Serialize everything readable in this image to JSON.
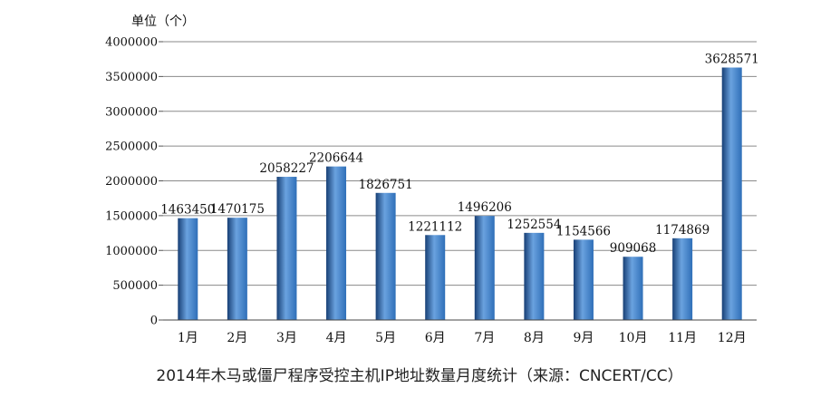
{
  "chart_data": {
    "type": "bar",
    "title": "2014年木马或僵尸程序受控主机IP地址数量月度统计（来源：CNCERT/CC）",
    "ylabel": "单位（个）",
    "xlabel": "",
    "categories": [
      "1月",
      "2月",
      "3月",
      "4月",
      "5月",
      "6月",
      "7月",
      "8月",
      "9月",
      "10月",
      "11月",
      "12月"
    ],
    "values": [
      1463450,
      1470175,
      2058227,
      2206644,
      1826751,
      1221112,
      1496206,
      1252554,
      1154566,
      909068,
      1174869,
      3628571
    ],
    "ylim": [
      0,
      4000000
    ],
    "yticks": [
      0,
      500000,
      1000000,
      1500000,
      2000000,
      2500000,
      3000000,
      3500000,
      4000000
    ],
    "grid": true,
    "legend": "none",
    "bar_color": "#2f6fb8",
    "bar_color_dark": "#173f75",
    "bar_color_light": "#6aa2df"
  }
}
